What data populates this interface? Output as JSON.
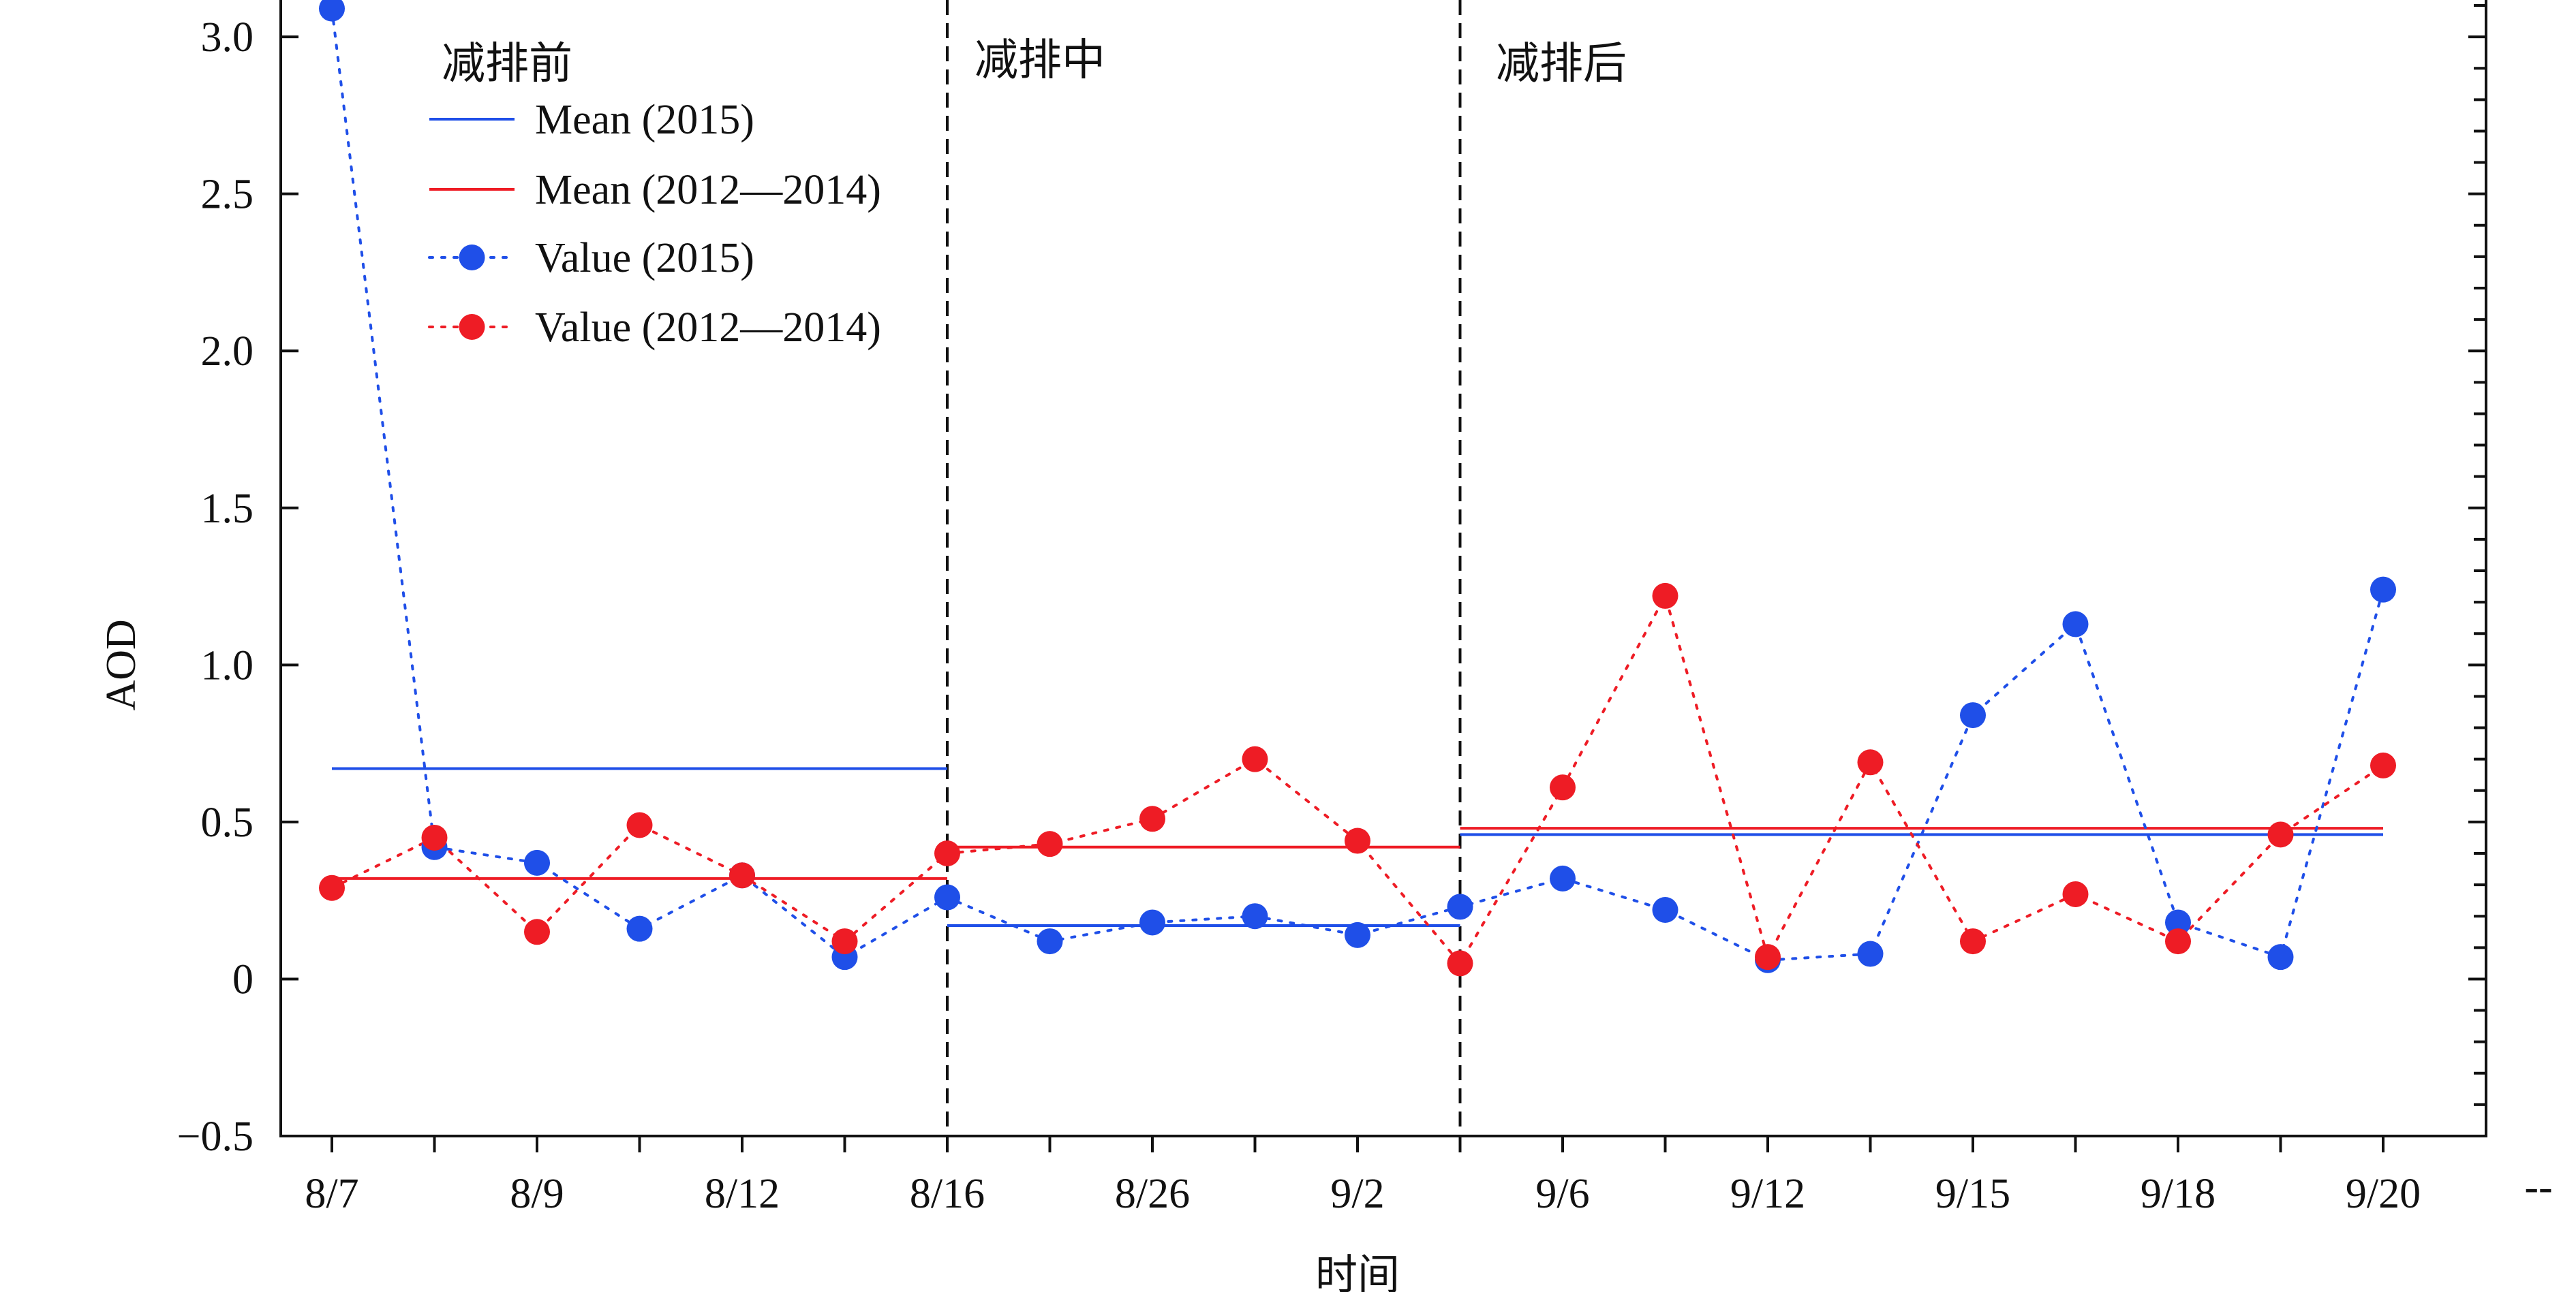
{
  "chart_data": {
    "type": "line",
    "title": "",
    "xlabel": "时间",
    "ylabel": "AOD",
    "ylim": [
      -0.5,
      3.1
    ],
    "yticks": [
      "3.0",
      "2.5",
      "2.0",
      "1.5",
      "1.0",
      "0.5",
      "0",
      "−0.5"
    ],
    "ytick_values": [
      3.0,
      2.5,
      2.0,
      1.5,
      1.0,
      0.5,
      0,
      -0.5
    ],
    "categories": [
      "8/7",
      "",
      "8/9",
      "",
      "8/12",
      "",
      "8/16",
      "",
      "8/26",
      "",
      "9/2",
      "",
      "9/6",
      "",
      "9/12",
      "",
      "9/15",
      "",
      "9/18",
      "",
      "9/20"
    ],
    "xtick_labels": [
      "8/7",
      "8/9",
      "8/12",
      "8/16",
      "8/26",
      "9/2",
      "9/6",
      "9/12",
      "9/15",
      "9/18",
      "9/20"
    ],
    "trailing_label": "--",
    "phases": [
      {
        "label": "减排前",
        "start": 0,
        "end": 6
      },
      {
        "label": "减排中",
        "start": 6,
        "end": 11
      },
      {
        "label": "减排后",
        "start": 11,
        "end": 20
      }
    ],
    "series": [
      {
        "name": "Value (2015)",
        "color": "#1f4fe8",
        "style": "dotted-markers",
        "values": [
          3.09,
          0.42,
          0.37,
          0.16,
          0.33,
          0.07,
          0.26,
          0.12,
          0.18,
          0.2,
          0.14,
          0.23,
          0.32,
          0.22,
          0.06,
          0.08,
          0.84,
          1.13,
          0.18,
          0.07,
          1.24
        ]
      },
      {
        "name": "Value (2012—2014)",
        "color": "#ee1c25",
        "style": "dotted-markers",
        "values": [
          0.29,
          0.45,
          0.15,
          0.49,
          0.33,
          0.12,
          0.4,
          0.43,
          0.51,
          0.7,
          0.44,
          0.05,
          0.61,
          1.22,
          0.07,
          0.69,
          0.12,
          0.27,
          0.12,
          0.46,
          0.68
        ]
      }
    ],
    "means": [
      {
        "name": "Mean (2015)",
        "color": "#1f4fe8",
        "segments": [
          {
            "from": 0,
            "to": 6,
            "value": 0.67
          },
          {
            "from": 6,
            "to": 11,
            "value": 0.17
          },
          {
            "from": 11,
            "to": 20,
            "value": 0.46
          }
        ]
      },
      {
        "name": "Mean (2012—2014)",
        "color": "#ee1c25",
        "segments": [
          {
            "from": 0,
            "to": 6,
            "value": 0.32
          },
          {
            "from": 6,
            "to": 11,
            "value": 0.42
          },
          {
            "from": 11,
            "to": 20,
            "value": 0.48
          }
        ]
      }
    ],
    "legend": {
      "position": "top-left",
      "entries": [
        {
          "label": "Mean (2015)",
          "kind": "line",
          "color": "#1f4fe8"
        },
        {
          "label": "Mean (2012—2014)",
          "kind": "line",
          "color": "#ee1c25"
        },
        {
          "label": "Value (2015)",
          "kind": "marker",
          "color": "#1f4fe8"
        },
        {
          "label": "Value (2012—2014)",
          "kind": "marker",
          "color": "#ee1c25"
        }
      ]
    }
  }
}
